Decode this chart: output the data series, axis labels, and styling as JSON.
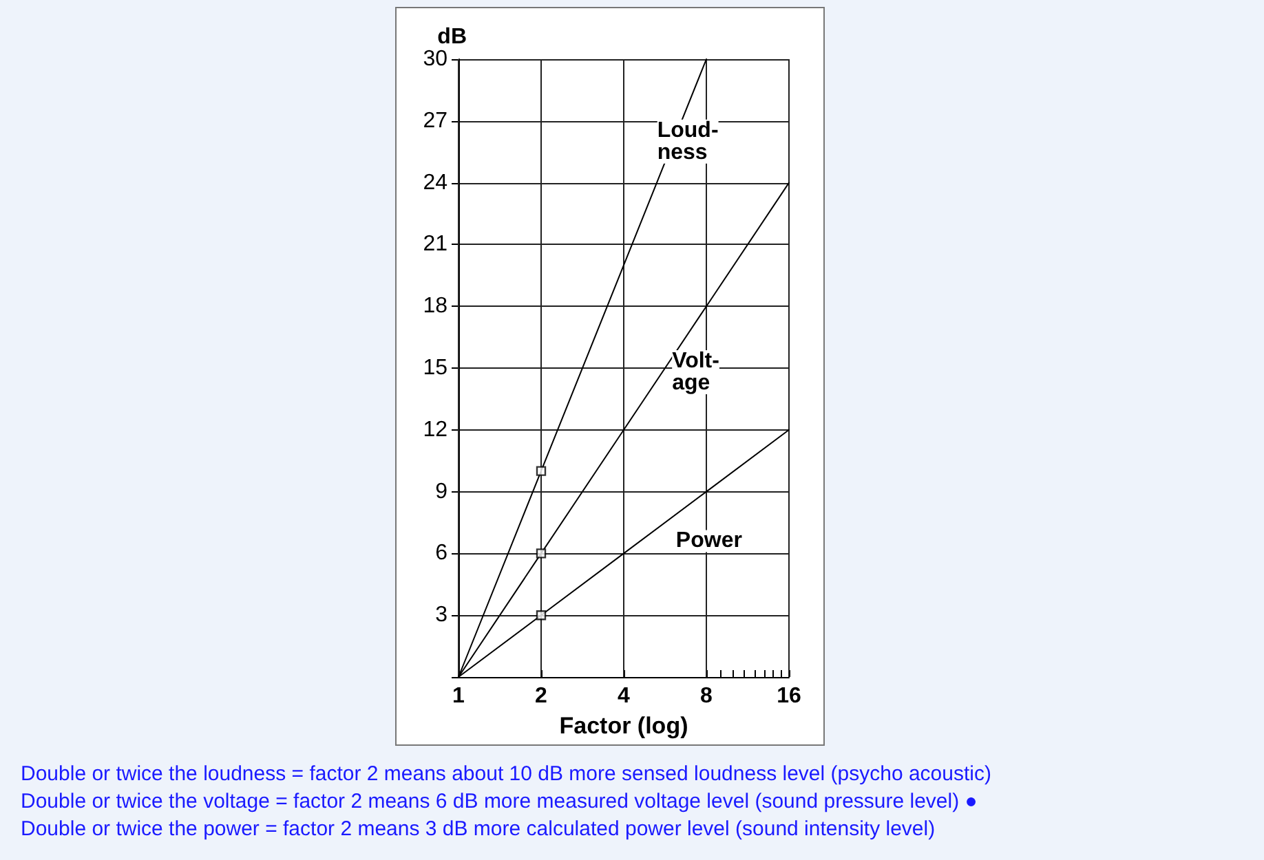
{
  "chart_data": {
    "type": "line",
    "xlabel": "Factor (log)",
    "ylabel": "dB",
    "log": "x",
    "xlim": [
      1,
      16
    ],
    "xticks": [
      1,
      2,
      4,
      8,
      {
        "value": 9,
        "label": null
      },
      {
        "value": 10,
        "label": null
      },
      {
        "value": 11,
        "label": null
      },
      {
        "value": 12,
        "label": null
      },
      {
        "value": 13,
        "label": null
      },
      {
        "value": 14,
        "label": null
      },
      {
        "value": 15,
        "label": null
      },
      16
    ],
    "ylim": [
      0,
      30
    ],
    "yticks": [
      {
        "value": 0,
        "label": null
      },
      3,
      6,
      9,
      12,
      15,
      18,
      21,
      24,
      27,
      30
    ],
    "grid": true,
    "legend": false,
    "line_style": "solid",
    "series": [
      {
        "name": "Loud-ness",
        "color": "#000000",
        "x": [
          1,
          2,
          4,
          8
        ],
        "values": [
          0,
          10,
          20,
          30
        ]
      },
      {
        "name": "Volt-age",
        "color": "#000000",
        "x": [
          1,
          2,
          4,
          8,
          16
        ],
        "values": [
          0,
          6,
          12,
          18,
          24
        ]
      },
      {
        "name": "Power",
        "color": "#000000",
        "x": [
          1,
          2,
          4,
          8,
          16
        ],
        "values": [
          0,
          3,
          6,
          9,
          12
        ]
      },
      {
        "type": "scatter",
        "marker": "square",
        "color": "#000000",
        "x": [
          2,
          2,
          2
        ],
        "values": [
          10,
          6,
          3
        ]
      }
    ],
    "annotations": [
      "Double or twice the loudness = factor 2 means about 10 dB more sensed loudness level (psycho acoustic)",
      "Double or twice the voltage = factor 2 means 6 dB more measured voltage level (sound pressure level) ●",
      "Double or twice the power = factor 2 means 3 dB more calculated power level (sound intensity level)"
    ]
  }
}
